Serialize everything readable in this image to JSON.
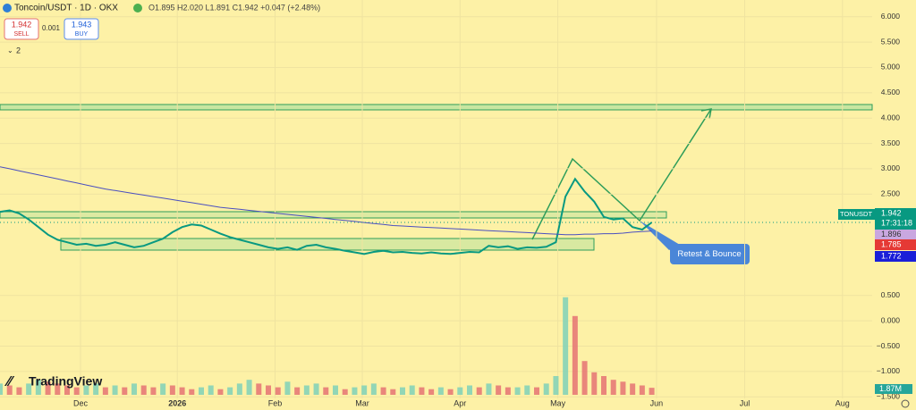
{
  "header": {
    "symbol": "Toncoin/USDT · 1D · OKX",
    "ohlc": "O1.895 H2.020 L1.891 C1.942 +0.047 (+2.48%)",
    "sell_price": "1.942",
    "sell": "SELL",
    "spread": "0.001",
    "buy_price": "1.943",
    "buy": "BUY",
    "indicators": "2"
  },
  "logo": "TradingView",
  "note": "Retest & Bounce",
  "price_tags": {
    "symbol": "TONUSDT",
    "last": "1.942",
    "countdown": "17:31:18",
    "ma_a": "1.896",
    "ma_b": "1.785",
    "ma_c": "1.772",
    "volume": "1.87M"
  },
  "chart_data": {
    "type": "line",
    "xlim": [
      0,
      91
    ],
    "xticks": [
      {
        "value": 8.4,
        "label": "Dec"
      },
      {
        "value": 18.5,
        "label": "2026"
      },
      {
        "value": 28.7,
        "label": "Feb"
      },
      {
        "value": 37.8,
        "label": "Mar"
      },
      {
        "value": 48,
        "label": "Apr"
      },
      {
        "value": 58.2,
        "label": "May"
      },
      {
        "value": 68.5,
        "label": "Jun"
      },
      {
        "value": 77.7,
        "label": "Jul"
      },
      {
        "value": 87.9,
        "label": "Aug"
      }
    ],
    "ylim": [
      -1.76,
      6.33
    ],
    "yticks": [
      {
        "value": 6,
        "label": "6.000"
      },
      {
        "value": 5.5,
        "label": "5.500"
      },
      {
        "value": 5,
        "label": "5.000"
      },
      {
        "value": 4.5,
        "label": "4.500"
      },
      {
        "value": 4,
        "label": "4.000"
      },
      {
        "value": 3.5,
        "label": "3.500"
      },
      {
        "value": 3,
        "label": "3.000"
      },
      {
        "value": 2.5,
        "label": "2.500"
      },
      {
        "value": 0.5,
        "label": "0.500"
      },
      {
        "value": 0,
        "label": "0.000"
      },
      {
        "value": -0.5,
        "label": "−0.500"
      },
      {
        "value": -1,
        "label": "−1.000"
      },
      {
        "value": -1.5,
        "label": "−1.500"
      }
    ],
    "y2lim": [
      0,
      30
    ],
    "series": [
      {
        "name": "TONUSDT",
        "color": "#089981",
        "values": [
          2.15,
          2.18,
          2.12,
          2.0,
          1.85,
          1.7,
          1.6,
          1.55,
          1.5,
          1.52,
          1.48,
          1.5,
          1.55,
          1.5,
          1.45,
          1.48,
          1.55,
          1.62,
          1.75,
          1.85,
          1.9,
          1.88,
          1.8,
          1.72,
          1.65,
          1.6,
          1.55,
          1.5,
          1.45,
          1.42,
          1.45,
          1.4,
          1.48,
          1.5,
          1.45,
          1.42,
          1.38,
          1.35,
          1.32,
          1.36,
          1.38,
          1.35,
          1.36,
          1.34,
          1.33,
          1.35,
          1.33,
          1.32,
          1.34,
          1.36,
          1.35,
          1.48,
          1.45,
          1.47,
          1.42,
          1.45,
          1.44,
          1.46,
          1.55,
          2.45,
          2.8,
          2.55,
          2.35,
          2.05,
          2.0,
          2.02,
          1.85,
          1.8,
          1.942
        ]
      },
      {
        "name": "MA",
        "color": "#4a4fc0",
        "values": [
          3.04,
          3.0,
          2.96,
          2.92,
          2.88,
          2.84,
          2.8,
          2.76,
          2.72,
          2.68,
          2.64,
          2.6,
          2.57,
          2.54,
          2.51,
          2.48,
          2.45,
          2.42,
          2.39,
          2.36,
          2.33,
          2.3,
          2.27,
          2.24,
          2.22,
          2.2,
          2.18,
          2.16,
          2.14,
          2.12,
          2.1,
          2.08,
          2.06,
          2.04,
          2.02,
          2.0,
          1.98,
          1.96,
          1.94,
          1.92,
          1.9,
          1.88,
          1.87,
          1.86,
          1.85,
          1.84,
          1.83,
          1.82,
          1.81,
          1.8,
          1.79,
          1.78,
          1.77,
          1.76,
          1.75,
          1.74,
          1.73,
          1.72,
          1.71,
          1.7,
          1.7,
          1.71,
          1.71,
          1.72,
          1.72,
          1.73,
          1.75,
          1.76,
          1.772
        ]
      },
      {
        "name": "Volume",
        "type": "bar",
        "axis": "y2",
        "color": "#e57373",
        "values": [
          3,
          2.5,
          2,
          3,
          4,
          3.5,
          3,
          2.5,
          2,
          2.5,
          3,
          2,
          2.5,
          2,
          3,
          2.5,
          2,
          3,
          2.5,
          2,
          1.5,
          2,
          2.5,
          1.5,
          2,
          3,
          4,
          3,
          2.5,
          2,
          3.5,
          2,
          2.5,
          3,
          2,
          2.5,
          1.5,
          2,
          2.5,
          3,
          2,
          1.5,
          2,
          2.5,
          2,
          1.5,
          2,
          1.5,
          2,
          2.5,
          2,
          3,
          2.5,
          2,
          2,
          2.5,
          2,
          3,
          5,
          26,
          21,
          9,
          6,
          5,
          4,
          3.5,
          3,
          2.5,
          1.87
        ]
      }
    ]
  }
}
